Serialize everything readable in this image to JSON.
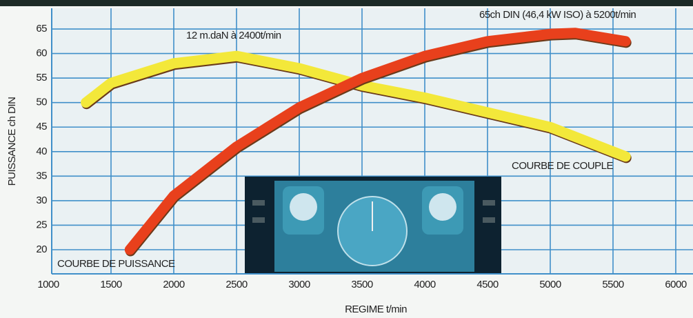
{
  "chart_data": {
    "type": "line",
    "y_label": "PUISSANCE ch DIN",
    "x_label": "REGIME t/min",
    "annotations": [
      "12 m.daN à 2400t/min",
      "65ch DIN (46,4 kW ISO) à 5200t/min",
      "COURBE DE COUPLE",
      "COURBE DE PUISSANCE"
    ],
    "series": [
      {
        "name": "COURBE DE PUISSANCE",
        "color": "#e8401c",
        "x": [
          1650,
          2000,
          2500,
          3000,
          3500,
          4000,
          4500,
          5000,
          5200,
          5600
        ],
        "values": [
          20,
          31,
          41,
          49,
          55,
          59.5,
          62.5,
          64,
          64.2,
          62.5
        ]
      },
      {
        "name": "COURBE DE COUPLE",
        "color": "#f3e83a",
        "x": [
          1300,
          1500,
          2000,
          2500,
          3000,
          3500,
          4000,
          4500,
          5000,
          5600
        ],
        "values": [
          50,
          54,
          58,
          59.5,
          57,
          53.5,
          51,
          48,
          45,
          39
        ]
      }
    ],
    "xlim": [
      1000,
      6000
    ],
    "ylim": [
      16,
      68
    ],
    "xticks": [
      1000,
      1500,
      2000,
      2500,
      3000,
      3500,
      4000,
      4500,
      5000,
      5500,
      6000
    ],
    "yticks": [
      20,
      25,
      30,
      35,
      40,
      45,
      50,
      55,
      60,
      65
    ],
    "grid": true
  }
}
